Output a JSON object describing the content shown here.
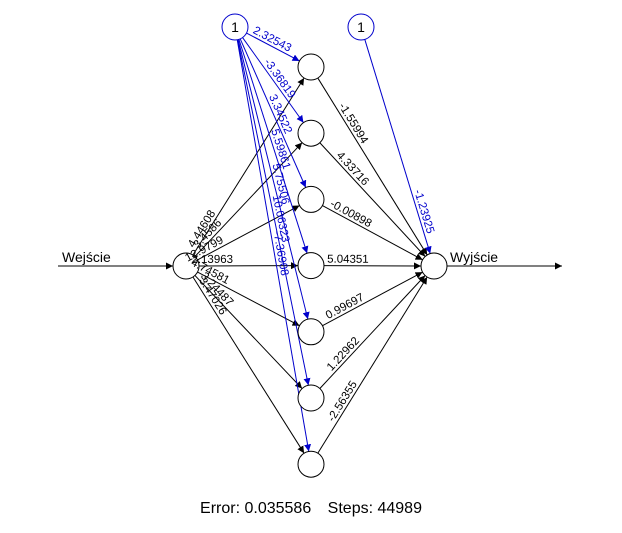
{
  "network": {
    "input_label": "Wejście",
    "output_label": "Wyjście",
    "bias_label": "1",
    "hidden_count": 7,
    "input_to_hidden": [
      "4.44608",
      "3.4586",
      "12.9799",
      "2.13963",
      "4.74581",
      "3.24487",
      "3.47026"
    ],
    "hidden_to_output": [
      "-1.55994",
      "4.33716",
      "-0.00898",
      "5.04351",
      "0.99697",
      "1.22962",
      "-2.56355"
    ],
    "bias_to_hidden": [
      "2.32543",
      "-3.36819",
      "3.34522",
      "5.59861",
      "5.75506",
      "10.06323",
      "-7.36908"
    ],
    "bias_to_output": "-1.23925",
    "colors": {
      "line": "#000000",
      "bias": "#0000cc"
    }
  },
  "footer": {
    "error_text": "Error: 0.035586",
    "steps_text": "Steps: 44989"
  }
}
